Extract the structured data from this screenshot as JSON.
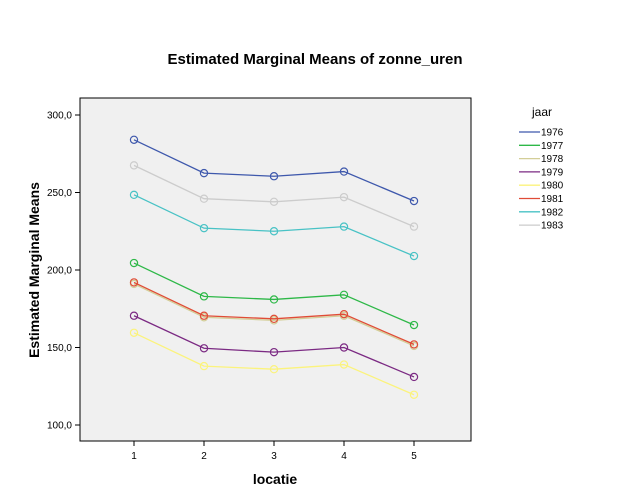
{
  "chart_data": {
    "type": "line",
    "title": "Estimated Marginal Means of zonne_uren",
    "xlabel": "locatie",
    "ylabel": "Estimated Marginal Means",
    "categories": [
      "1",
      "2",
      "3",
      "4",
      "5"
    ],
    "ylim": [
      90,
      310
    ],
    "yticks": [
      100,
      150,
      200,
      250,
      300
    ],
    "ytick_labels": [
      "100,0",
      "150,0",
      "200,0",
      "250,0",
      "300,0"
    ],
    "grid": false,
    "legend": {
      "title": "jaar",
      "placement": "right"
    },
    "series": [
      {
        "name": "1976",
        "color": "#3e58ac",
        "values": [
          284,
          262.5,
          260.5,
          263.5,
          244.5
        ]
      },
      {
        "name": "1977",
        "color": "#2eb848",
        "values": [
          204.5,
          183,
          181,
          184,
          164.5
        ]
      },
      {
        "name": "1978",
        "color": "#d3ce97",
        "values": [
          191,
          169.5,
          167.5,
          170.5,
          151
        ]
      },
      {
        "name": "1979",
        "color": "#7b2a83",
        "values": [
          170.5,
          149.5,
          147,
          150,
          131
        ]
      },
      {
        "name": "1980",
        "color": "#fbf37c",
        "values": [
          159.5,
          138,
          136,
          139,
          119.5
        ]
      },
      {
        "name": "1981",
        "color": "#e04c36",
        "values": [
          192,
          170.5,
          168.5,
          171.5,
          152
        ]
      },
      {
        "name": "1982",
        "color": "#48c2c5",
        "values": [
          248.5,
          227,
          225,
          228,
          209
        ]
      },
      {
        "name": "1983",
        "color": "#cccccc",
        "values": [
          267.5,
          246,
          244,
          247,
          228
        ]
      }
    ]
  }
}
